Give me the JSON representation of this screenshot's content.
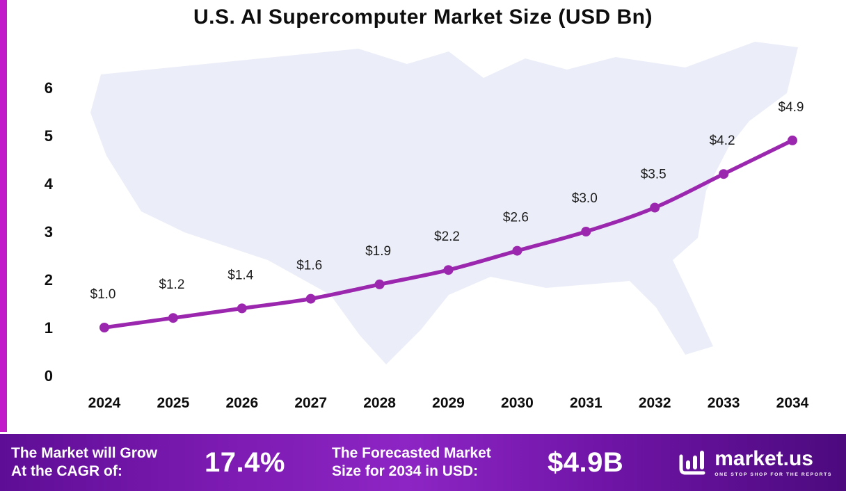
{
  "chart_data": {
    "type": "line",
    "title": "U.S. AI Supercomputer Market Size (USD Bn)",
    "x": [
      "2024",
      "2025",
      "2026",
      "2027",
      "2028",
      "2029",
      "2030",
      "2031",
      "2032",
      "2033",
      "2034"
    ],
    "values": [
      1.0,
      1.2,
      1.4,
      1.6,
      1.9,
      2.2,
      2.6,
      3.0,
      3.5,
      4.2,
      4.9
    ],
    "point_labels": [
      "$1.0",
      "$1.2",
      "$1.4",
      "$1.6",
      "$1.9",
      "$2.2",
      "$2.6",
      "$3.0",
      "$3.5",
      "$4.2",
      "$4.9"
    ],
    "y_ticks": [
      0,
      1,
      2,
      3,
      4,
      5,
      6
    ],
    "ylim": [
      0,
      6
    ],
    "xlabel": "",
    "ylabel": "",
    "grid": false,
    "legend": "none",
    "line_color": "#9b27af"
  },
  "footer": {
    "cagr_label": "The Market will Grow\nAt the CAGR of:",
    "cagr_value": "17.4%",
    "forecast_label": "The Forecasted Market\nSize for 2034 in USD:",
    "forecast_value": "$4.9B",
    "logo_text": "market.us",
    "logo_tagline": "ONE STOP SHOP FOR THE REPORTS"
  },
  "colors": {
    "line": "#9b27af",
    "left_strip": "#c21bc9",
    "map_fill": "#ebeef8",
    "footer_gradient_start": "#5e0d96",
    "footer_gradient_mid": "#8d25c4",
    "footer_gradient_end": "#4c0a7e"
  }
}
